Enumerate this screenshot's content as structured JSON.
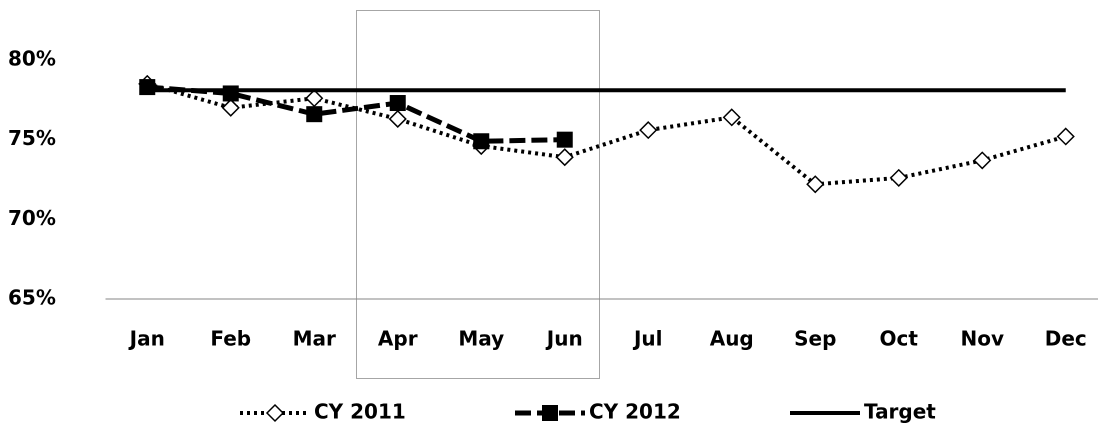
{
  "chart_data": {
    "type": "line",
    "categories": [
      "Jan",
      "Feb",
      "Mar",
      "Apr",
      "May",
      "Jun",
      "Jul",
      "Aug",
      "Sep",
      "Oct",
      "Nov",
      "Dec"
    ],
    "series": [
      {
        "name": "CY 2011",
        "color": "#000000",
        "values": [
          78.5,
          77.0,
          77.6,
          76.3,
          74.6,
          73.9,
          75.6,
          76.4,
          72.2,
          72.6,
          73.7,
          75.2
        ]
      },
      {
        "name": "CY 2012",
        "color": "#000000",
        "values": [
          78.3,
          77.9,
          76.6,
          77.3,
          74.9,
          75.0,
          null,
          null,
          null,
          null,
          null,
          null
        ]
      },
      {
        "name": "Target",
        "color": "#000000",
        "values": [
          78.1,
          78.1,
          78.1,
          78.1,
          78.1,
          78.1,
          78.1,
          78.1,
          78.1,
          78.1,
          78.1,
          78.1
        ]
      }
    ],
    "ylim": [
      65,
      80
    ],
    "yticks": [
      {
        "value": 65,
        "label": "65%"
      },
      {
        "value": 70,
        "label": "70%"
      },
      {
        "value": 75,
        "label": "75%"
      },
      {
        "value": 80,
        "label": "80%"
      }
    ],
    "grid": false,
    "legend": "bottom"
  }
}
